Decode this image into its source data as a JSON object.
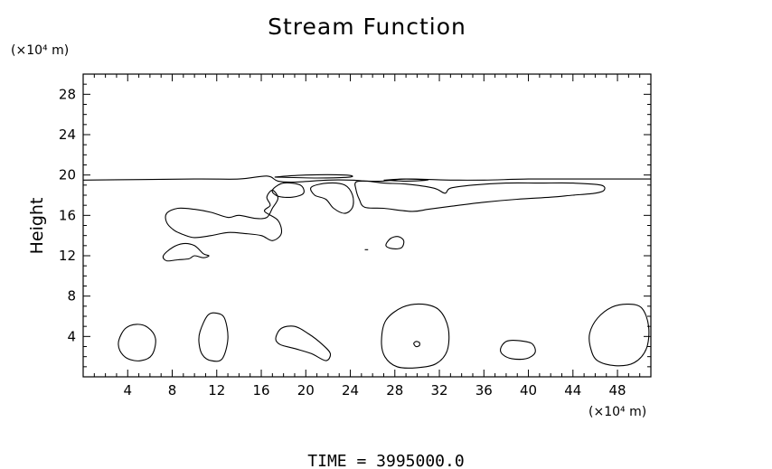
{
  "chart_data": {
    "type": "contour",
    "title": "Stream Function",
    "xlabel": "",
    "ylabel": "Height",
    "x_unit": "(×10⁴ m)",
    "y_unit": "(×10⁴ m)",
    "xlim": [
      0,
      51
    ],
    "ylim": [
      0,
      30
    ],
    "x_ticks": [
      4,
      8,
      12,
      16,
      20,
      24,
      28,
      32,
      36,
      40,
      44,
      48
    ],
    "y_ticks": [
      4,
      8,
      12,
      16,
      20,
      24,
      28
    ],
    "x_minor_step": 1,
    "y_minor_step": 1,
    "grid": false,
    "footer": "TIME = 3995000.0",
    "contours": [
      {
        "points": [
          [
            0,
            19.5
          ],
          [
            10,
            19.6
          ],
          [
            14,
            19.6
          ],
          [
            16.5,
            19.9
          ],
          [
            17.5,
            19.4
          ],
          [
            19,
            19.3
          ],
          [
            22,
            19.5
          ],
          [
            24,
            19.5
          ],
          [
            25.5,
            19.4
          ],
          [
            27,
            19.4
          ],
          [
            29,
            19.6
          ],
          [
            33,
            19.5
          ],
          [
            36,
            19.5
          ],
          [
            40,
            19.6
          ],
          [
            44,
            19.6
          ],
          [
            51,
            19.6
          ]
        ],
        "closed": false
      },
      {
        "points": [
          [
            17.2,
            19.8
          ],
          [
            20,
            20.0
          ],
          [
            23.5,
            20.0
          ],
          [
            24,
            19.8
          ],
          [
            21,
            19.7
          ],
          [
            17.2,
            19.8
          ]
        ],
        "closed": false
      },
      {
        "points": [
          [
            27,
            19.5
          ],
          [
            29,
            19.6
          ],
          [
            31,
            19.5
          ],
          [
            29,
            19.4
          ],
          [
            27,
            19.5
          ]
        ],
        "closed": false
      },
      {
        "points": [
          [
            17,
            18.5
          ],
          [
            18,
            19.2
          ],
          [
            19.5,
            19.0
          ],
          [
            19.8,
            18.2
          ],
          [
            18.8,
            17.8
          ],
          [
            17.5,
            17.9
          ]
        ],
        "closed": true
      },
      {
        "points": [
          [
            20.5,
            18.8
          ],
          [
            22,
            19.2
          ],
          [
            23.5,
            19.0
          ],
          [
            24.2,
            18.0
          ],
          [
            24.2,
            16.8
          ],
          [
            23.5,
            16.2
          ],
          [
            22.5,
            16.7
          ],
          [
            21.8,
            17.6
          ],
          [
            20.8,
            18.0
          ]
        ],
        "closed": true
      },
      {
        "points": [
          [
            24.5,
            19.3
          ],
          [
            25.5,
            19.4
          ],
          [
            27,
            19.2
          ],
          [
            29,
            19.1
          ],
          [
            31.5,
            18.7
          ],
          [
            32.5,
            18.2
          ],
          [
            33,
            18.7
          ],
          [
            35,
            19.0
          ],
          [
            38,
            19.2
          ],
          [
            41,
            19.2
          ],
          [
            44,
            19.2
          ],
          [
            46.5,
            19.0
          ],
          [
            46.8,
            18.5
          ],
          [
            46,
            18.2
          ],
          [
            44,
            18.0
          ],
          [
            42,
            17.8
          ],
          [
            39,
            17.6
          ],
          [
            36,
            17.3
          ],
          [
            33,
            16.9
          ],
          [
            31,
            16.6
          ],
          [
            29.5,
            16.4
          ],
          [
            27,
            16.7
          ],
          [
            25.3,
            16.8
          ],
          [
            24.8,
            17.6
          ],
          [
            24.5,
            18.6
          ]
        ],
        "closed": true
      },
      {
        "points": [
          [
            7.5,
            16.2
          ],
          [
            8.5,
            16.7
          ],
          [
            10,
            16.6
          ],
          [
            11.5,
            16.3
          ],
          [
            13,
            15.8
          ],
          [
            14,
            16.0
          ],
          [
            15.5,
            15.7
          ],
          [
            16.5,
            15.8
          ],
          [
            17,
            16.7
          ],
          [
            17.5,
            17.7
          ],
          [
            17,
            18.5
          ],
          [
            16.5,
            17.8
          ],
          [
            16.8,
            17.0
          ],
          [
            16.3,
            16.4
          ],
          [
            17.5,
            15.5
          ],
          [
            17.8,
            14.2
          ],
          [
            17,
            13.5
          ],
          [
            16,
            14.0
          ],
          [
            14.5,
            14.2
          ],
          [
            13,
            14.3
          ],
          [
            11.5,
            14.0
          ],
          [
            10,
            13.8
          ],
          [
            9,
            14.1
          ],
          [
            8.2,
            14.5
          ],
          [
            7.5,
            15.3
          ]
        ],
        "closed": true
      },
      {
        "points": [
          [
            7.2,
            12.0
          ],
          [
            8,
            12.8
          ],
          [
            9,
            13.2
          ],
          [
            10,
            13.0
          ],
          [
            10.8,
            12.2
          ],
          [
            11.3,
            12.0
          ],
          [
            10.8,
            11.8
          ],
          [
            10,
            12.0
          ],
          [
            9.5,
            11.7
          ],
          [
            8.5,
            11.6
          ],
          [
            7.5,
            11.5
          ]
        ],
        "closed": true
      },
      {
        "points": [
          [
            27.2,
            13.0
          ],
          [
            27.6,
            13.7
          ],
          [
            28.3,
            13.9
          ],
          [
            28.8,
            13.5
          ],
          [
            28.6,
            12.8
          ],
          [
            27.8,
            12.7
          ]
        ],
        "closed": true
      },
      {
        "points": [
          [
            25.3,
            12.6
          ],
          [
            25.6,
            12.6
          ]
        ],
        "closed": false
      },
      {
        "points": [
          [
            3.2,
            3.6
          ],
          [
            3.8,
            4.8
          ],
          [
            4.8,
            5.2
          ],
          [
            5.8,
            4.9
          ],
          [
            6.5,
            3.8
          ],
          [
            6.2,
            2.2
          ],
          [
            5.2,
            1.6
          ],
          [
            4,
            1.8
          ],
          [
            3.3,
            2.6
          ]
        ],
        "closed": true
      },
      {
        "points": [
          [
            10.5,
            4.5
          ],
          [
            11.2,
            6.1
          ],
          [
            12,
            6.3
          ],
          [
            12.7,
            5.8
          ],
          [
            13,
            3.8
          ],
          [
            12.5,
            1.8
          ],
          [
            11.5,
            1.6
          ],
          [
            10.7,
            2.2
          ],
          [
            10.4,
            3.4
          ]
        ],
        "closed": true
      },
      {
        "points": [
          [
            17.3,
            3.8
          ],
          [
            17.8,
            4.8
          ],
          [
            19,
            5.0
          ],
          [
            20.2,
            4.3
          ],
          [
            21.5,
            3.2
          ],
          [
            22.2,
            2.3
          ],
          [
            21.8,
            1.6
          ],
          [
            20.5,
            2.3
          ],
          [
            19,
            2.8
          ],
          [
            17.7,
            3.2
          ]
        ],
        "closed": true
      },
      {
        "points": [
          [
            26.8,
            3.6
          ],
          [
            27.2,
            5.6
          ],
          [
            28.7,
            6.9
          ],
          [
            30.5,
            7.2
          ],
          [
            32,
            6.6
          ],
          [
            32.8,
            4.8
          ],
          [
            32.7,
            2.6
          ],
          [
            31.7,
            1.3
          ],
          [
            30,
            0.9
          ],
          [
            28.2,
            1.0
          ],
          [
            27.1,
            2.0
          ]
        ],
        "closed": true
      },
      {
        "points": [
          [
            29.7,
            3.3
          ],
          [
            29.9,
            3.5
          ],
          [
            30.2,
            3.4
          ],
          [
            30.2,
            3.1
          ],
          [
            29.9,
            3.0
          ]
        ],
        "closed": true
      },
      {
        "points": [
          [
            37.5,
            2.8
          ],
          [
            38,
            3.5
          ],
          [
            39,
            3.6
          ],
          [
            40.3,
            3.3
          ],
          [
            40.6,
            2.4
          ],
          [
            39.8,
            1.8
          ],
          [
            38.5,
            1.8
          ],
          [
            37.7,
            2.2
          ]
        ],
        "closed": true
      },
      {
        "points": [
          [
            45.5,
            4.3
          ],
          [
            46.2,
            5.8
          ],
          [
            47.5,
            6.9
          ],
          [
            49,
            7.2
          ],
          [
            50.2,
            6.8
          ],
          [
            50.8,
            5.0
          ],
          [
            50.6,
            2.8
          ],
          [
            49.5,
            1.4
          ],
          [
            47.8,
            1.1
          ],
          [
            46.2,
            1.6
          ],
          [
            45.6,
            2.8
          ]
        ],
        "closed": true
      }
    ]
  }
}
